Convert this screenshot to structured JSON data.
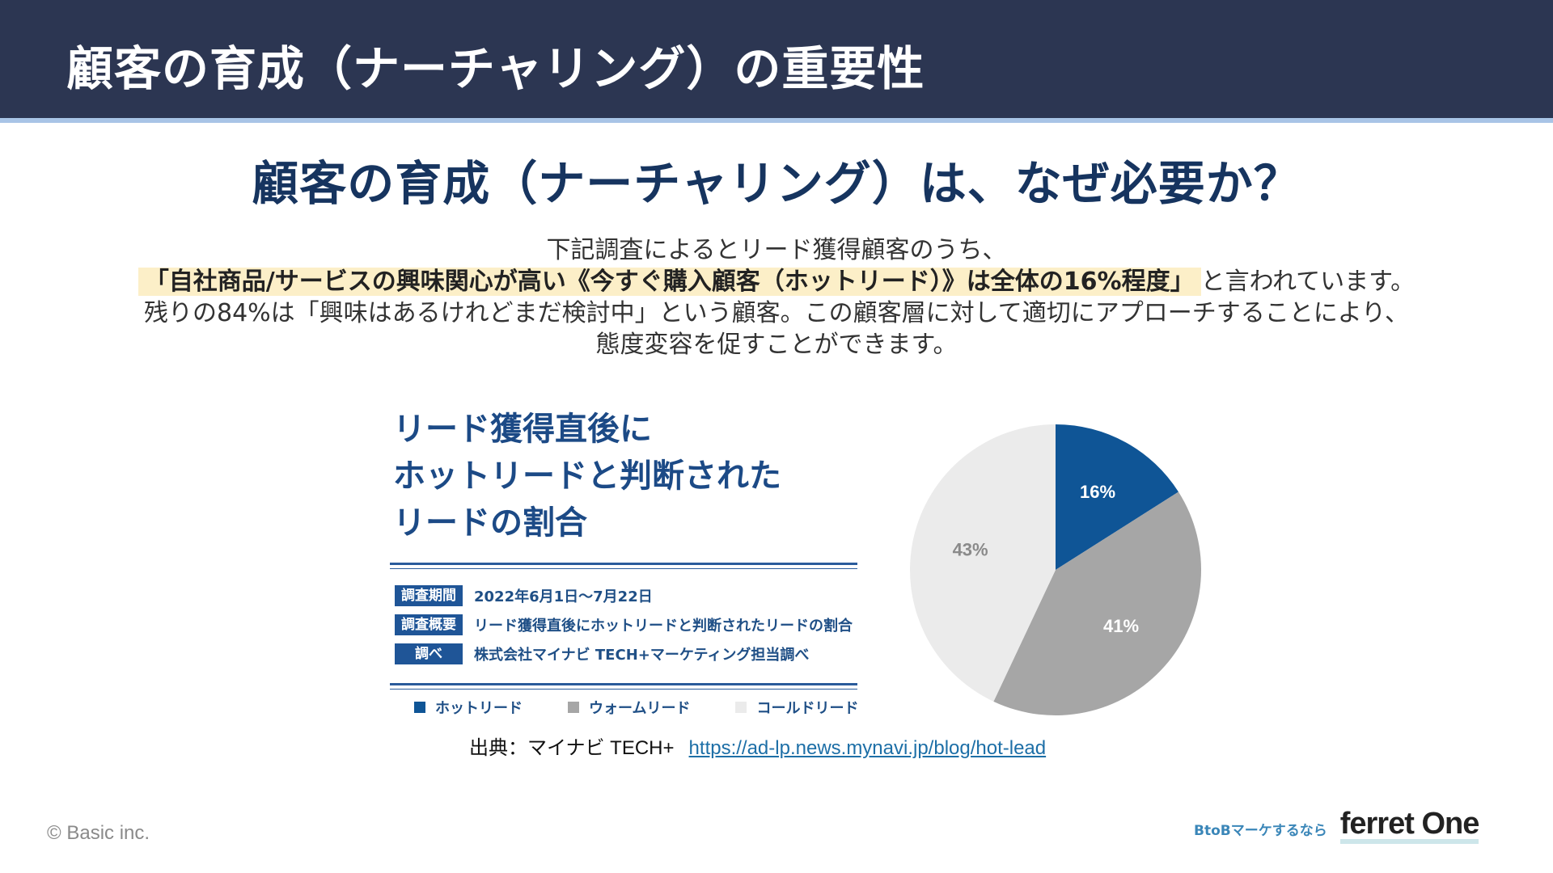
{
  "header": {
    "title": "顧客の育成（ナーチャリング）の重要性"
  },
  "subtitle": "顧客の育成（ナーチャリング）は、なぜ必要か？",
  "body": {
    "line1": "下記調査によるとリード獲得顧客のうち、",
    "line2_highlight": "「自社商品/サービスの興味関心が高い《今すぐ購入顧客（ホットリード）》は全体の16%程度」",
    "line2_rest": "と言われています。",
    "line3": "残りの84%は「興味はあるけれどまだ検討中」という顧客。この顧客層に対して適切にアプローチすることにより、",
    "line4": "態度変容を促すことができます。"
  },
  "figure": {
    "title_lines": [
      "リード獲得直後に",
      "ホットリードと判断された",
      "リードの割合"
    ],
    "info": [
      {
        "label": "調査期間",
        "value": "2022年6月1日〜7月22日"
      },
      {
        "label": "調査概要",
        "value": "リード獲得直後にホットリードと判断されたリードの割合"
      },
      {
        "label": "調べ",
        "value": "株式会社マイナビ TECH+マーケティング担当調べ"
      }
    ],
    "legend": [
      {
        "label": "ホットリード",
        "color": "#0f5596"
      },
      {
        "label": "ウォームリード",
        "color": "#a6a6a6"
      },
      {
        "label": "コールドリード",
        "color": "#ebebeb"
      }
    ]
  },
  "chart_data": {
    "type": "pie",
    "categories": [
      "ホットリード",
      "ウォームリード",
      "コールドリード"
    ],
    "values": [
      16,
      41,
      43
    ],
    "labels": [
      "16%",
      "41%",
      "43%"
    ],
    "colors": [
      "#0f5596",
      "#a6a6a6",
      "#ebebeb"
    ],
    "label_colors": [
      "#ffffff",
      "#ffffff",
      "#8a8a8a"
    ]
  },
  "source": {
    "prefix": "出典：マイナビ TECH+",
    "url_text": "https://ad-lp.news.mynavi.jp/blog/hot-lead"
  },
  "footer": {
    "copyright": "© Basic inc.",
    "brand_tag": "BtoBマーケするなら",
    "brand_logo": "ferret One"
  }
}
